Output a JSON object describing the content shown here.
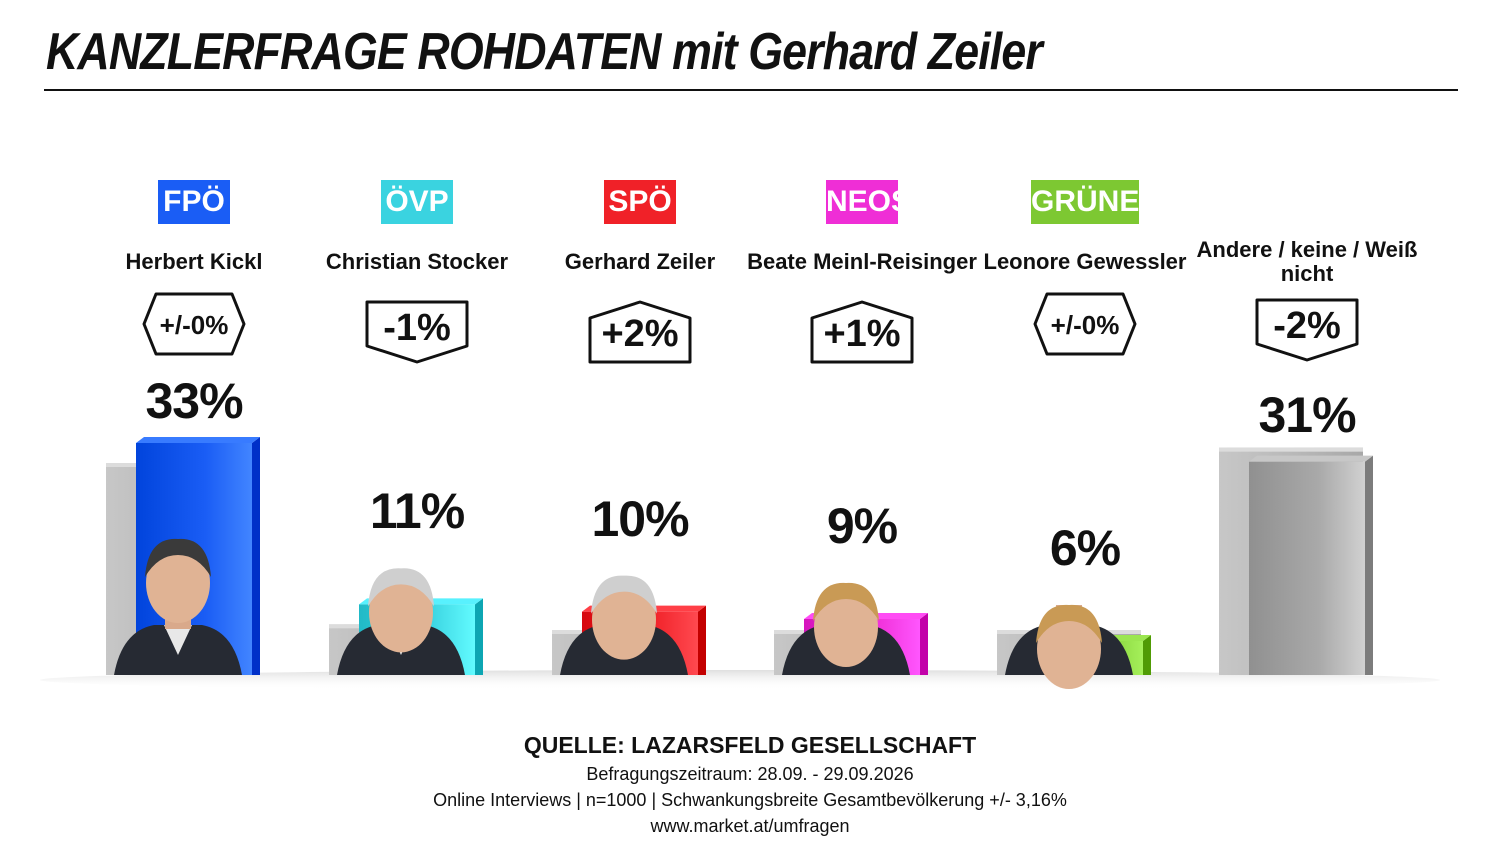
{
  "header": {
    "title": "KANZLERFRAGE ROHDATEN mit Gerhard Zeiler"
  },
  "chart_data": {
    "type": "bar",
    "title": "KANZLERFRAGE ROHDATEN mit Gerhard Zeiler",
    "categories": [
      "FPÖ",
      "ÖVP",
      "SPÖ",
      "NEOS",
      "GRÜNE",
      "Andere / keine / Weiß nicht"
    ],
    "candidates": [
      "Herbert Kickl",
      "Christian Stocker",
      "Gerhard Zeiler",
      "Beate Meinl-Reisinger",
      "Leonore Gewessler",
      "Andere / keine / Weiß nicht"
    ],
    "values": [
      33,
      11,
      10,
      9,
      6,
      31
    ],
    "value_labels": [
      "33%",
      "11%",
      "10%",
      "9%",
      "6%",
      "31%"
    ],
    "changes": [
      0,
      -1,
      2,
      1,
      0,
      -2
    ],
    "change_labels": [
      "+/-0%",
      "-1%",
      "+2%",
      "+1%",
      "+/-0%",
      "-2%"
    ],
    "ylim": [
      0,
      33
    ],
    "grid": false,
    "legend": "none"
  },
  "columns": [
    {
      "party": "FPÖ",
      "candidate": "Herbert Kickl",
      "value_label": "33%",
      "change_label": "+/-0%",
      "color": "#1a5df5",
      "photo": "portrait-herbert-kickl"
    },
    {
      "party": "ÖVP",
      "candidate": "Christian Stocker",
      "value_label": "11%",
      "change_label": "-1%",
      "color": "#3ad3e0",
      "photo": "portrait-christian-stocker"
    },
    {
      "party": "SPÖ",
      "candidate": "Gerhard Zeiler",
      "value_label": "10%",
      "change_label": "+2%",
      "color": "#f02128",
      "photo": "portrait-gerhard-zeiler"
    },
    {
      "party": "NEOS",
      "candidate": "Beate Meinl-Reisinger",
      "value_label": "9%",
      "change_label": "+1%",
      "color": "#ef2ed6",
      "photo": "portrait-beate-meinl-reisinger"
    },
    {
      "party": "GRÜNE",
      "candidate": "Leonore Gewessler",
      "value_label": "6%",
      "change_label": "+/-0%",
      "color": "#7dc832",
      "photo": "portrait-leonore-gewessler"
    },
    {
      "party": "",
      "candidate": "Andere / keine / Weiß nicht",
      "value_label": "31%",
      "change_label": "-2%",
      "color": "#a9a9a9",
      "photo": ""
    }
  ],
  "source": {
    "title": "QUELLE: LAZARSFELD GESELLSCHAFT",
    "period": "Befragungszeitraum: 28.09. - 29.09.2026",
    "method": "Online Interviews | n=1000 | Schwankungsbreite Gesamtbevölkerung +/- 3,16%",
    "url": "www.market.at/umfragen"
  }
}
